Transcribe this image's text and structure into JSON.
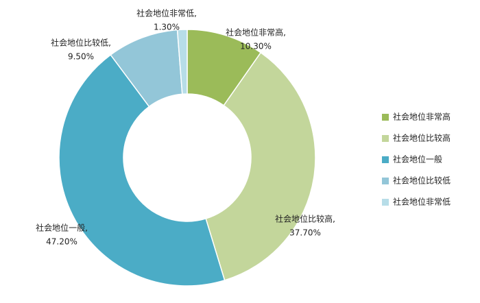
{
  "chart_data": {
    "type": "donut",
    "categories": [
      "社会地位非常高",
      "社会地位比较高",
      "社会地位一般",
      "社会地位比较低",
      "社会地位非常低"
    ],
    "data_label_names": [
      "社会地位非常高,",
      "社会地位比较高,",
      "社会地位一般,",
      "社会地位比较低,",
      "社会地位非常低,"
    ],
    "values": [
      10.3,
      37.7,
      47.2,
      9.5,
      1.3
    ],
    "value_labels": [
      "10.30%",
      "37.70%",
      "47.20%",
      "9.50%",
      "1.30%"
    ],
    "colors": [
      "#9bbb59",
      "#c3d69b",
      "#4bacc6",
      "#93c6d8",
      "#b7dde8"
    ],
    "legend": "right"
  }
}
